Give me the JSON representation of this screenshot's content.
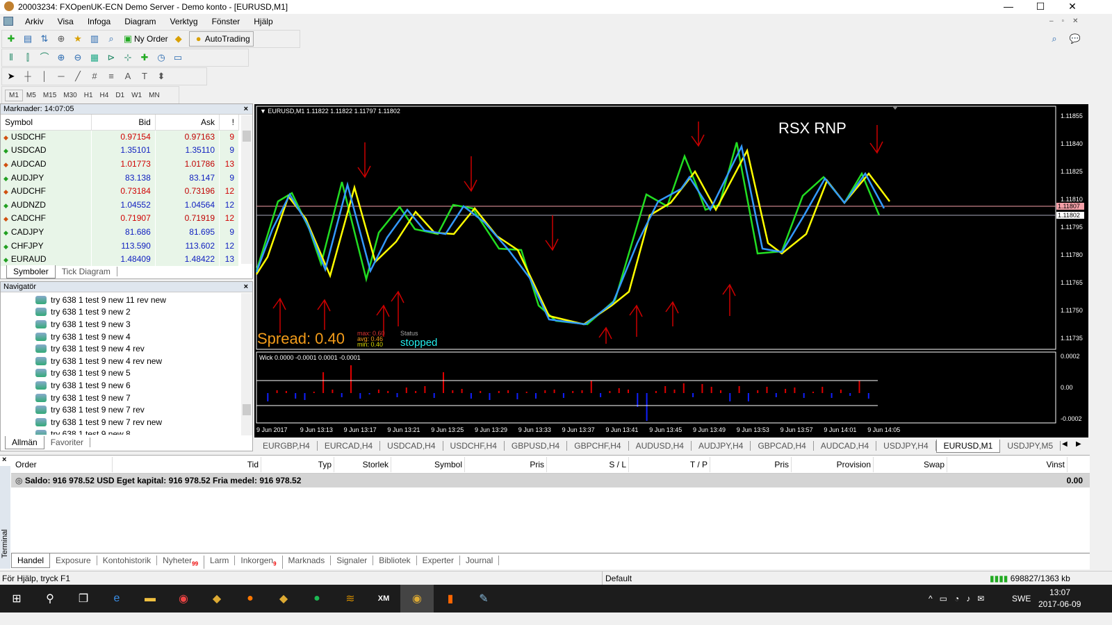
{
  "window": {
    "title": "20003234: FXOpenUK-ECN Demo Server - Demo konto - [EURUSD,M1]",
    "minimize": "—",
    "maximize": "☐",
    "close": "✕"
  },
  "menu": [
    "Arkiv",
    "Visa",
    "Infoga",
    "Diagram",
    "Verktyg",
    "Fönster",
    "Hjälp"
  ],
  "toolbar": {
    "new_order": "Ny Order",
    "autotrading": "AutoTrading"
  },
  "timeframes": [
    "M1",
    "M5",
    "M15",
    "M30",
    "H1",
    "H4",
    "D1",
    "W1",
    "MN"
  ],
  "market_watch": {
    "title": "Marknader: 14:07:05",
    "columns": [
      "Symbol",
      "Bid",
      "Ask",
      "!"
    ],
    "rows": [
      {
        "symbol": "USDCHF",
        "bid": "0.97154",
        "ask": "0.97163",
        "spread": "9",
        "dir": "down"
      },
      {
        "symbol": "USDCAD",
        "bid": "1.35101",
        "ask": "1.35110",
        "spread": "9",
        "dir": "up"
      },
      {
        "symbol": "AUDCAD",
        "bid": "1.01773",
        "ask": "1.01786",
        "spread": "13",
        "dir": "down"
      },
      {
        "symbol": "AUDJPY",
        "bid": "83.138",
        "ask": "83.147",
        "spread": "9",
        "dir": "up"
      },
      {
        "symbol": "AUDCHF",
        "bid": "0.73184",
        "ask": "0.73196",
        "spread": "12",
        "dir": "down"
      },
      {
        "symbol": "AUDNZD",
        "bid": "1.04552",
        "ask": "1.04564",
        "spread": "12",
        "dir": "up"
      },
      {
        "symbol": "CADCHF",
        "bid": "0.71907",
        "ask": "0.71919",
        "spread": "12",
        "dir": "down"
      },
      {
        "symbol": "CADJPY",
        "bid": "81.686",
        "ask": "81.695",
        "spread": "9",
        "dir": "up"
      },
      {
        "symbol": "CHFJPY",
        "bid": "113.590",
        "ask": "113.602",
        "spread": "12",
        "dir": "up"
      },
      {
        "symbol": "EURAUD",
        "bid": "1.48409",
        "ask": "1.48422",
        "spread": "13",
        "dir": "up"
      }
    ],
    "tabs": [
      "Symboler",
      "Tick Diagram"
    ]
  },
  "navigator": {
    "title": "Navigatör",
    "items": [
      "try 638 1 test 9 new 11 rev new",
      "try 638 1 test 9 new 2",
      "try 638 1 test 9 new 3",
      "try 638 1 test 9 new 4",
      "try 638 1 test 9 new 4 rev",
      "try 638 1 test 9 new 4 rev new",
      "try 638 1 test 9 new 5",
      "try 638 1 test 9 new 6",
      "try 638 1 test 9 new 7",
      "try 638 1 test 9 new 7 rev",
      "try 638 1 test 9 new 7 rev new",
      "try 638 1 test 9 new 8"
    ],
    "tabs": [
      "Allmän",
      "Favoriter"
    ]
  },
  "chart": {
    "header": "EURUSD,M1  1.11822 1.11822 1.11797 1.11802",
    "watermark": "RSX RNP",
    "spread_label": "Spread: 0.40",
    "max": "max:  0.60",
    "avg": "avg:  0.46",
    "min": "min:  0.40",
    "status_label": "Status",
    "status_value": "stopped",
    "price_ticks": [
      "1.11855",
      "1.11840",
      "1.11825",
      "1.11810",
      "1.11795",
      "1.11780",
      "1.11765",
      "1.11750",
      "1.11735"
    ],
    "ask_price": "1.11807",
    "bid_price": "1.11802",
    "sub_header": "Wick 0.0000 -0.0001 0.0001 -0.0001",
    "sub_ticks": [
      "0.0002",
      "0.00",
      "-0.0002"
    ],
    "time_ticks": [
      "9 Jun 2017",
      "9 Jun 13:13",
      "9 Jun 13:17",
      "9 Jun 13:21",
      "9 Jun 13:25",
      "9 Jun 13:29",
      "9 Jun 13:33",
      "9 Jun 13:37",
      "9 Jun 13:41",
      "9 Jun 13:45",
      "9 Jun 13:49",
      "9 Jun 13:53",
      "9 Jun 13:57",
      "9 Jun 14:01",
      "9 Jun 14:05"
    ],
    "colors": {
      "green": "#22dd22",
      "yellow": "#ffff00",
      "blue": "#3399ff",
      "arrows": "#cc0000"
    },
    "tabs": [
      "EURGBP,H4",
      "EURCAD,H4",
      "USDCAD,H4",
      "USDCHF,H4",
      "GBPUSD,H4",
      "GBPCHF,H4",
      "AUDUSD,H4",
      "AUDJPY,H4",
      "GBPCAD,H4",
      "AUDCAD,H4",
      "USDJPY,H4",
      "EURUSD,M1",
      "USDJPY,M5"
    ],
    "active_tab": "EURUSD,M1"
  },
  "terminal": {
    "side_label": "Terminal",
    "columns": [
      "Order",
      "Tid",
      "Typ",
      "Storlek",
      "Symbol",
      "Pris",
      "S / L",
      "T / P",
      "Pris",
      "Provision",
      "Swap",
      "Vinst"
    ],
    "balance": "Saldo: 916 978.52 USD  Eget kapital: 916 978.52  Fria medel: 916 978.52",
    "profit": "0.00",
    "tabs": [
      {
        "label": "Handel"
      },
      {
        "label": "Exposure"
      },
      {
        "label": "Kontohistorik"
      },
      {
        "label": "Nyheter",
        "badge": "99"
      },
      {
        "label": "Larm"
      },
      {
        "label": "Inkorgen",
        "badge": "9"
      },
      {
        "label": "Marknads"
      },
      {
        "label": "Signaler"
      },
      {
        "label": "Bibliotek"
      },
      {
        "label": "Experter"
      },
      {
        "label": "Journal"
      }
    ]
  },
  "statusbar": {
    "help": "För Hjälp, tryck F1",
    "profile": "Default",
    "traffic": "698827/1363 kb"
  },
  "taskbar": {
    "language": "SWE",
    "time": "13:07",
    "date": "2017-06-09"
  }
}
